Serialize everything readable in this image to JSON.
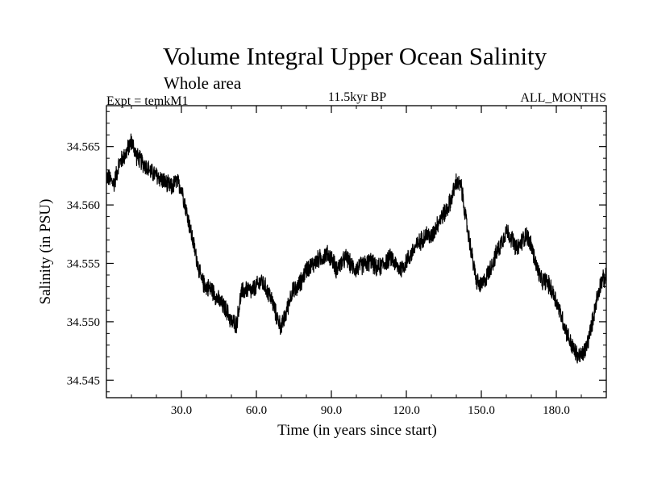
{
  "chart_data": {
    "type": "line",
    "title": "Volume Integral Upper Ocean Salinity",
    "subtitle": "Whole area",
    "header_left": "Expt = temkM1",
    "header_center": "11.5kyr BP",
    "header_right": "ALL_MONTHS",
    "xlabel": "Time (in years since start)",
    "ylabel": "Salinity (in PSU)",
    "xlim": [
      0,
      200
    ],
    "ylim": [
      34.5435,
      34.5685
    ],
    "x_ticks": [
      30,
      60,
      90,
      120,
      150,
      180
    ],
    "x_tick_labels": [
      "30.0",
      "60.0",
      "90.0",
      "120.0",
      "150.0",
      "180.0"
    ],
    "y_ticks": [
      34.545,
      34.55,
      34.555,
      34.56,
      34.565
    ],
    "y_tick_labels": [
      "34.545",
      "34.550",
      "34.555",
      "34.560",
      "34.565"
    ],
    "grid": false,
    "series": [
      {
        "name": "salinity",
        "color": "#000000",
        "noise_amplitude": 0.0009,
        "x": [
          0,
          3,
          5,
          8,
          10,
          12,
          15,
          18,
          20,
          22,
          24,
          26,
          28,
          30,
          32,
          34,
          36,
          38,
          40,
          42,
          45,
          48,
          50,
          52,
          54,
          56,
          58,
          60,
          62,
          64,
          66,
          68,
          70,
          72,
          74,
          76,
          78,
          80,
          82,
          84,
          86,
          88,
          90,
          92,
          94,
          96,
          98,
          100,
          102,
          104,
          106,
          108,
          110,
          112,
          114,
          116,
          118,
          120,
          122,
          124,
          126,
          128,
          130,
          132,
          134,
          136,
          138,
          140,
          142,
          144,
          146,
          148,
          150,
          152,
          154,
          156,
          158,
          160,
          162,
          164,
          166,
          168,
          170,
          172,
          174,
          176,
          178,
          180,
          182,
          184,
          186,
          188,
          190,
          192,
          194,
          196,
          198,
          200
        ],
        "values": [
          34.5625,
          34.5618,
          34.5635,
          34.5645,
          34.5655,
          34.5642,
          34.5635,
          34.5628,
          34.5625,
          34.5622,
          34.5618,
          34.5615,
          34.562,
          34.5615,
          34.5595,
          34.5575,
          34.5555,
          34.5535,
          34.553,
          34.5528,
          34.5518,
          34.551,
          34.55,
          34.5498,
          34.5525,
          34.5528,
          34.5526,
          34.553,
          34.5535,
          34.5528,
          34.552,
          34.5505,
          34.5495,
          34.5508,
          34.5525,
          34.5528,
          34.5535,
          34.5545,
          34.5548,
          34.5552,
          34.5555,
          34.5558,
          34.5555,
          34.5545,
          34.555,
          34.5555,
          34.5548,
          34.5545,
          34.5548,
          34.555,
          34.5552,
          34.5545,
          34.5548,
          34.5552,
          34.5555,
          34.5548,
          34.5545,
          34.5552,
          34.5558,
          34.5565,
          34.557,
          34.5575,
          34.5572,
          34.5582,
          34.559,
          34.5595,
          34.5605,
          34.562,
          34.5615,
          34.5585,
          34.556,
          34.5535,
          34.553,
          34.5538,
          34.5548,
          34.5558,
          34.5568,
          34.5578,
          34.5572,
          34.5562,
          34.5568,
          34.5575,
          34.5565,
          34.5548,
          34.5535,
          34.5535,
          34.5528,
          34.5518,
          34.5505,
          34.5492,
          34.548,
          34.5472,
          34.547,
          34.5478,
          34.5495,
          34.5518,
          34.5535,
          34.5538
        ]
      }
    ]
  }
}
